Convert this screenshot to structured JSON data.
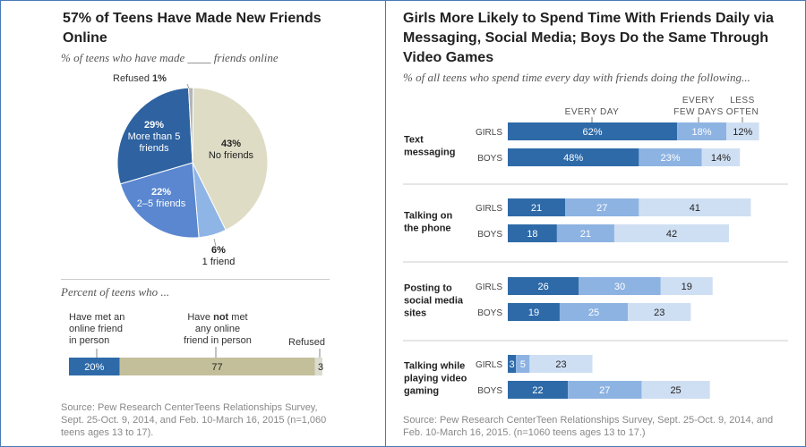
{
  "colors": {
    "border": "#4a7ab5",
    "dark_blue": "#2e6aa8",
    "mid_blue": "#8db3e2",
    "light_blue": "#cfdff3",
    "pie_dark": "#2e62a0",
    "pie_mid": "#5a87cf",
    "pie_light": "#8fb4e6",
    "pie_tan": "#dedcc5",
    "pie_gray": "#b5b5b5",
    "bar_tan": "#c4bf9b"
  },
  "left": {
    "title": "57% of Teens Have Made New Friends Online",
    "subtitle": "% of teens who have made ____ friends online",
    "pie": {
      "slices": [
        {
          "key": "no_friends",
          "pct": "43%",
          "label": "No friends",
          "value": 43,
          "color": "#dedcc5",
          "text_color": "#222"
        },
        {
          "key": "one",
          "pct": "6%",
          "label": "1 friend",
          "value": 6,
          "color": "#8fb4e6",
          "text_color": "#222"
        },
        {
          "key": "two_five",
          "pct": "22%",
          "label": "2–5 friends",
          "value": 22,
          "color": "#5a87cf",
          "text_color": "#ffffff"
        },
        {
          "key": "more_five",
          "pct": "29%",
          "label": "More than 5\nfriends",
          "value": 29,
          "color": "#2e62a0",
          "text_color": "#ffffff"
        },
        {
          "key": "refused",
          "pct": "1%",
          "label": "Refused",
          "value": 1,
          "color": "#b5b5b5",
          "text_color": "#222"
        }
      ]
    },
    "percent_header": "Percent of teens who ...",
    "bar_labels": {
      "met": "Have met an online friend in person",
      "not_met_pre": "Have ",
      "not_met_bold": "not",
      "not_met_post": " met any online friend in person",
      "refused": "Refused"
    },
    "bar": [
      {
        "value": 20,
        "label": "20%",
        "color": "#2e6aa8",
        "text_color": "#ffffff"
      },
      {
        "value": 77,
        "label": "77",
        "color": "#c4bf9b",
        "text_color": "#222"
      },
      {
        "value": 3,
        "label": "3",
        "color": "#dcdccf",
        "text_color": "#222"
      }
    ],
    "source": "Source: Pew Research CenterTeens Relationships Survey, Sept. 25-Oct. 9, 2014, and Feb. 10-March 16, 2015 (n=1,060 teens ages 13 to 17)."
  },
  "right": {
    "title": "Girls More Likely to Spend Time With Friends Daily via Messaging, Social Media; Boys Do the Same Through Video Games",
    "subtitle": "% of all teens who spend time every day with friends doing the following...",
    "source": "Source: Pew Research CenterTeen Relationships Survey, Sept. 25-Oct. 9, 2014, and Feb. 10-March 16, 2015. (n=1060 teens ages 13 to 17.)"
  },
  "chart_data": [
    {
      "type": "pie",
      "title": "57% of Teens Have Made New Friends Online",
      "subtitle": "% of teens who have made ____ friends online",
      "categories": [
        "No friends",
        "1 friend",
        "2–5 friends",
        "More than 5 friends",
        "Refused"
      ],
      "values": [
        43,
        6,
        22,
        29,
        1
      ]
    },
    {
      "type": "bar",
      "stacked": true,
      "orientation": "horizontal",
      "title": "Percent of teens who ...",
      "categories": [
        "Have met an online friend in person",
        "Have not met any online friend in person",
        "Refused"
      ],
      "values": [
        20,
        77,
        3
      ]
    },
    {
      "type": "bar",
      "stacked": true,
      "orientation": "horizontal",
      "title": "Girls More Likely to Spend Time With Friends Daily via Messaging, Social Media; Boys Do the Same Through Video Games",
      "subtitle": "% of all teens who spend time every day with friends doing the following...",
      "series_names": [
        "EVERY DAY",
        "EVERY FEW DAYS",
        "LESS OFTEN"
      ],
      "series_header_labels": [
        "EVERY DAY",
        "EVERY\nFEW DAYS",
        "LESS\nOFTEN"
      ],
      "groups": [
        {
          "category": "Text messaging",
          "category_display": "Text\nmessaging",
          "rows": [
            {
              "group": "GIRLS",
              "values": [
                62,
                18,
                12
              ],
              "labels": [
                "62%",
                "18%",
                "12%"
              ]
            },
            {
              "group": "BOYS",
              "values": [
                48,
                23,
                14
              ],
              "labels": [
                "48%",
                "23%",
                "14%"
              ]
            }
          ]
        },
        {
          "category": "Talking on the phone",
          "category_display": "Talking on\nthe phone",
          "rows": [
            {
              "group": "GIRLS",
              "values": [
                21,
                27,
                41
              ],
              "labels": [
                "21",
                "27",
                "41"
              ]
            },
            {
              "group": "BOYS",
              "values": [
                18,
                21,
                42
              ],
              "labels": [
                "18",
                "21",
                "42"
              ]
            }
          ]
        },
        {
          "category": "Posting to social media sites",
          "category_display": "Posting to\nsocial media\nsites",
          "rows": [
            {
              "group": "GIRLS",
              "values": [
                26,
                30,
                19
              ],
              "labels": [
                "26",
                "30",
                "19"
              ]
            },
            {
              "group": "BOYS",
              "values": [
                19,
                25,
                23
              ],
              "labels": [
                "19",
                "25",
                "23"
              ]
            }
          ]
        },
        {
          "category": "Talking while playing video gaming",
          "category_display": "Talking while\nplaying video\ngaming",
          "rows": [
            {
              "group": "GIRLS",
              "values": [
                3,
                5,
                23
              ],
              "labels": [
                "3",
                "5",
                "23"
              ]
            },
            {
              "group": "BOYS",
              "values": [
                22,
                27,
                25
              ],
              "labels": [
                "22",
                "27",
                "25"
              ]
            }
          ]
        }
      ]
    }
  ]
}
